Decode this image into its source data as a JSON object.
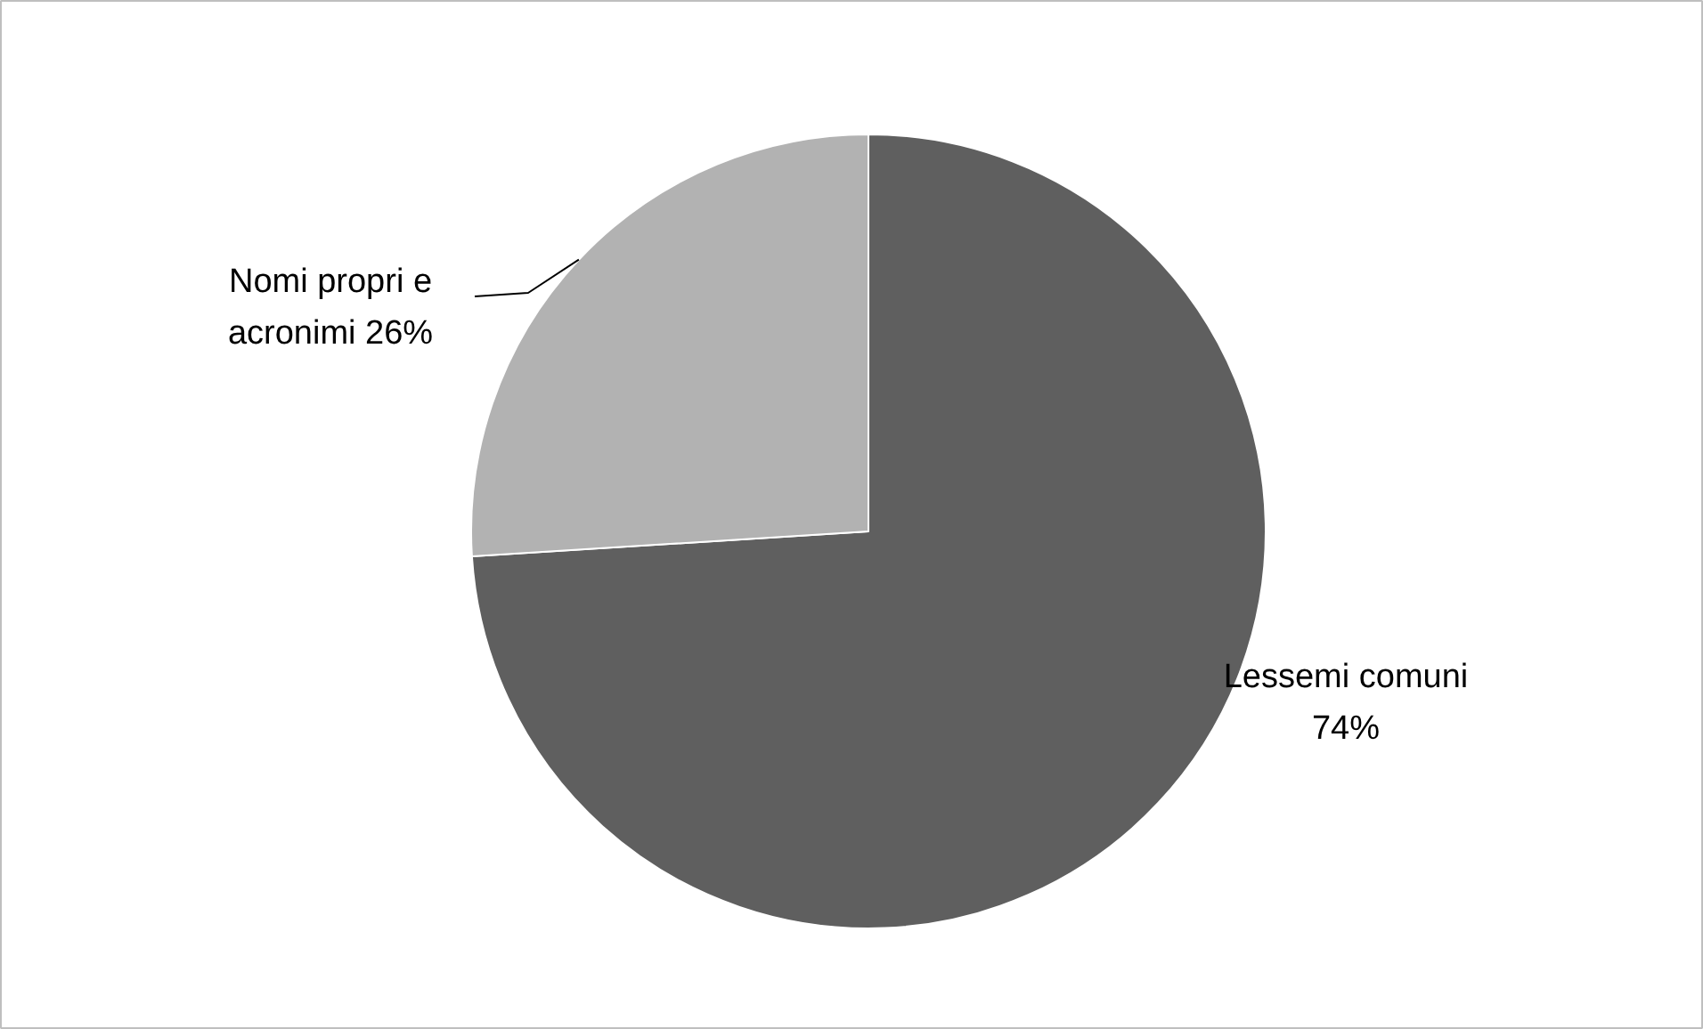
{
  "chart_data": {
    "type": "pie",
    "categories": [
      "Lessemi comuni",
      "Nomi propri e acronimi"
    ],
    "values": [
      74,
      26
    ],
    "colors": [
      "#5f5f5f",
      "#b2b2b2"
    ],
    "data_labels": true,
    "value_labels": [
      "74%",
      "26%"
    ]
  }
}
